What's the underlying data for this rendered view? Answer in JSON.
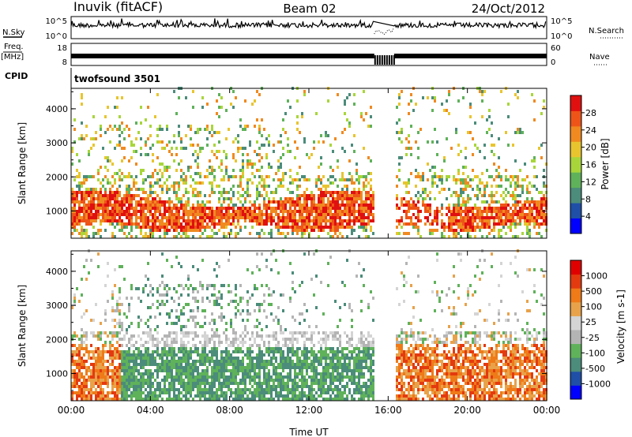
{
  "header": {
    "station": "Inuvik (fitACF)",
    "beam": "Beam 02",
    "date": "24/Oct/2012"
  },
  "params": {
    "nsky_label": "N.Sky",
    "nsky_ticks": [
      "10^5",
      "10^0"
    ],
    "nsearch_label": "N.Search",
    "nsearch_ticks": [
      "10^5",
      "10^0"
    ],
    "freq_label_1": "Freq.",
    "freq_label_2": "[MHz]",
    "freq_ticks": [
      "18",
      "8"
    ],
    "nave_label": "Nave",
    "nave_ticks": [
      "60",
      "0"
    ],
    "cpid_label": "CPID",
    "cpid_value": "twofsound 3501"
  },
  "colors": {
    "power_scale": [
      "#0000ff",
      "#1f4fa6",
      "#4b8c7a",
      "#5fb25a",
      "#a8d63a",
      "#e8c52e",
      "#f08a20",
      "#ee5418",
      "#e01010"
    ],
    "velocity_scale": [
      "#0000ff",
      "#1f4fa6",
      "#4b8c7a",
      "#5fb25a",
      "#b4b4b4",
      "#d4d4d4",
      "#e8a24a",
      "#ef7a18",
      "#e43a10",
      "#e00000"
    ]
  },
  "chart_data": [
    {
      "type": "heatmap",
      "name": "power-panel",
      "ylabel": "Slant Range [km]",
      "ylim": [
        200,
        4600
      ],
      "yticks": [
        "1000",
        "2000",
        "3000",
        "4000"
      ],
      "ytick_values": [
        1000,
        2000,
        3000,
        4000
      ],
      "xlim_hours": [
        0,
        24
      ],
      "colorbar": {
        "label": "Power [dB]",
        "ticks": [
          "28",
          "24",
          "20",
          "16",
          "12",
          "8",
          "4"
        ],
        "tick_values": [
          28,
          24,
          20,
          16,
          12,
          8,
          4
        ],
        "range": [
          0,
          32
        ]
      },
      "data_gap_hours": [
        15.3,
        16.3
      ]
    },
    {
      "type": "heatmap",
      "name": "velocity-panel",
      "ylabel": "Slant Range [km]",
      "ylim": [
        200,
        4600
      ],
      "yticks": [
        "1000",
        "2000",
        "3000",
        "4000"
      ],
      "ytick_values": [
        1000,
        2000,
        3000,
        4000
      ],
      "xlim_hours": [
        0,
        24
      ],
      "colorbar": {
        "label": "Velocity [m s-1]",
        "ticks": [
          "1000",
          "500",
          "100",
          "25",
          "-25",
          "-100",
          "-500",
          "-1000"
        ]
      },
      "data_gap_hours": [
        15.3,
        16.3
      ]
    }
  ],
  "xaxis": {
    "label": "Time UT",
    "ticks": [
      "00:00",
      "04:00",
      "08:00",
      "12:00",
      "16:00",
      "20:00",
      "00:00"
    ],
    "tick_values": [
      0,
      4,
      8,
      12,
      16,
      20,
      24
    ]
  }
}
